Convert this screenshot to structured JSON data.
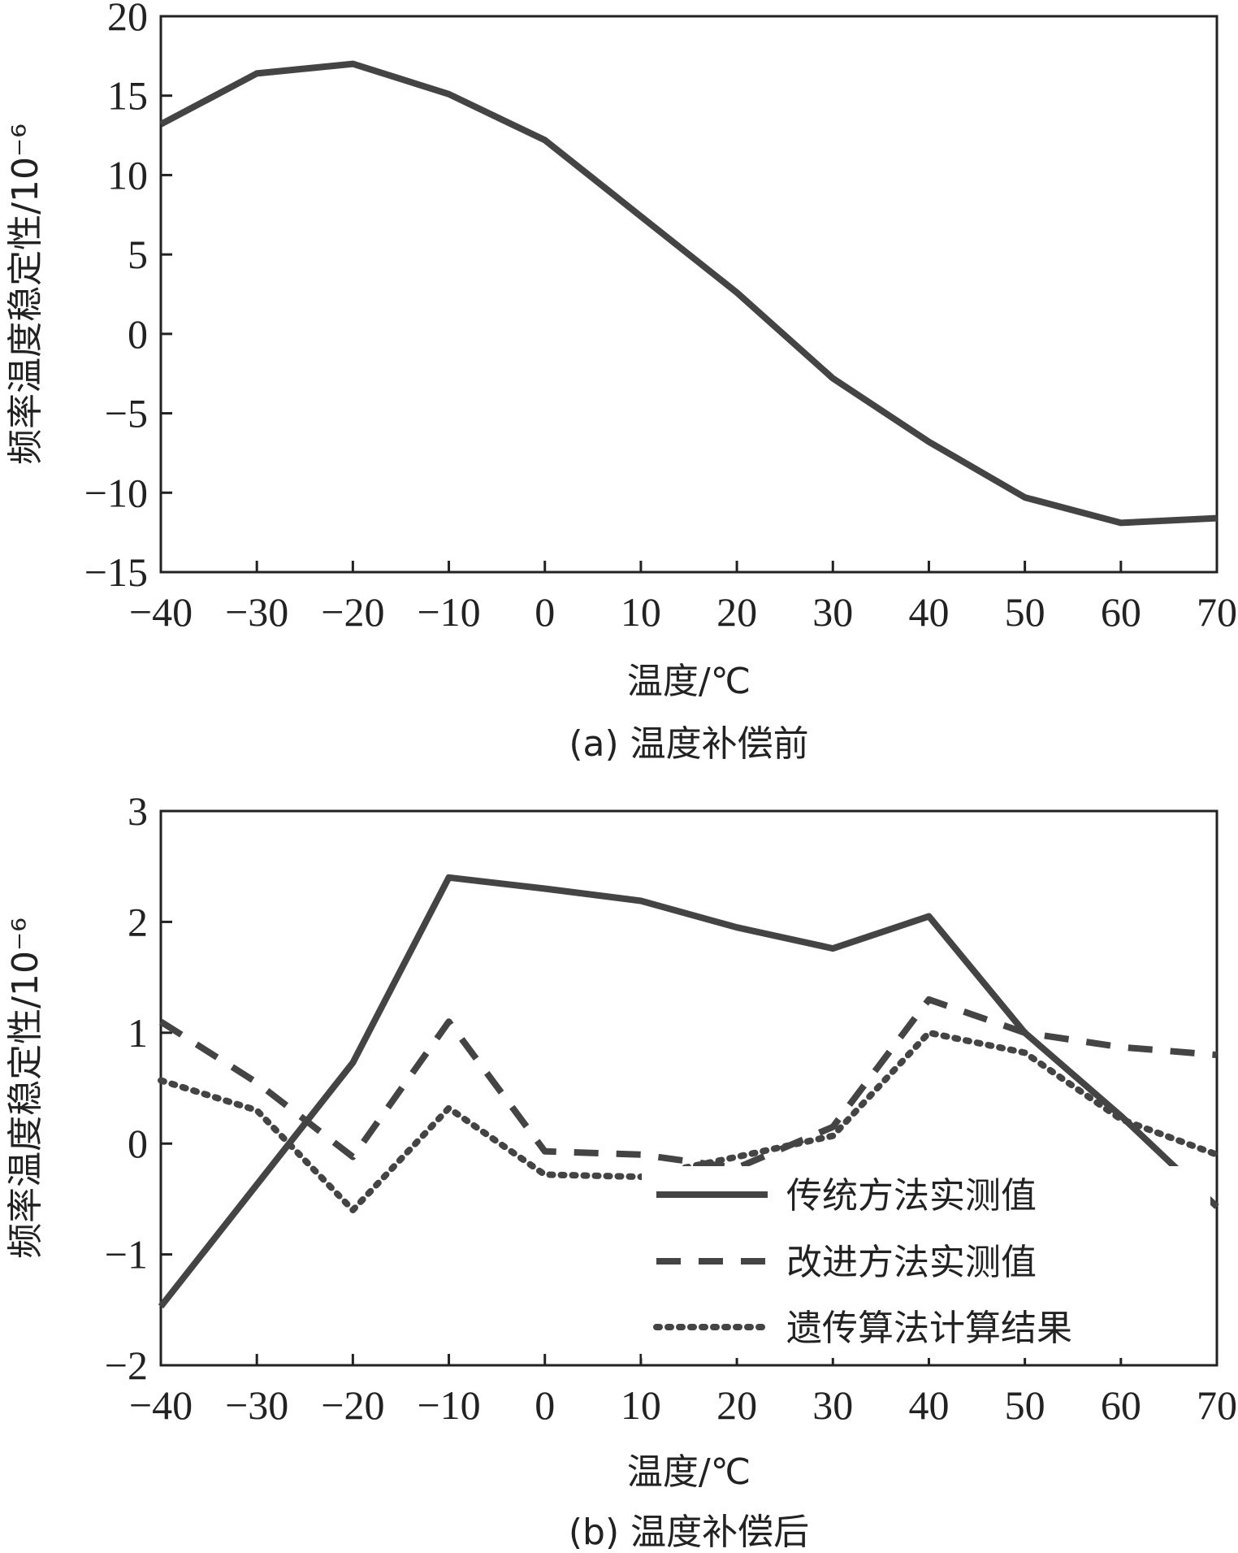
{
  "chart_data": [
    {
      "type": "line",
      "caption": "(a) 温度补偿前",
      "xlabel": "温度/℃",
      "ylabel": "频率温度稳定性/10⁻⁶",
      "xlim": [
        -40,
        70
      ],
      "ylim": [
        -15,
        20
      ],
      "xticks": [
        -40,
        -30,
        -20,
        -10,
        0,
        10,
        20,
        30,
        40,
        50,
        60,
        70
      ],
      "yticks": [
        -15,
        -10,
        -5,
        0,
        5,
        10,
        15,
        20
      ],
      "xtick_labels": [
        "−40",
        "−30",
        "−20",
        "−10",
        "0",
        "10",
        "20",
        "30",
        "40",
        "50",
        "60",
        "70"
      ],
      "ytick_labels": [
        "−15",
        "−10",
        "−5",
        "0",
        "5",
        "10",
        "15",
        "20"
      ],
      "grid": false,
      "series": [
        {
          "name": "",
          "style": "solid",
          "color": "#444444",
          "x": [
            -40,
            -30,
            -20,
            -10,
            0,
            10,
            20,
            30,
            40,
            50,
            60,
            70
          ],
          "values": [
            13.2,
            16.4,
            17.0,
            15.1,
            12.2,
            7.4,
            2.6,
            -2.8,
            -6.8,
            -10.3,
            -11.9,
            -11.6
          ]
        }
      ]
    },
    {
      "type": "line",
      "caption": "(b) 温度补偿后",
      "xlabel": "温度/℃",
      "ylabel": "频率温度稳定性/10⁻⁶",
      "xlim": [
        -40,
        70
      ],
      "ylim": [
        -2,
        3
      ],
      "xticks": [
        -40,
        -30,
        -20,
        -10,
        0,
        10,
        20,
        30,
        40,
        50,
        60,
        70
      ],
      "yticks": [
        -2,
        -1,
        0,
        1,
        2,
        3
      ],
      "xtick_labels": [
        "−40",
        "−30",
        "−20",
        "−10",
        "0",
        "10",
        "20",
        "30",
        "40",
        "50",
        "60",
        "70"
      ],
      "ytick_labels": [
        "−2",
        "−1",
        "0",
        "1",
        "2",
        "3"
      ],
      "grid": false,
      "legend_position": "bottom-right",
      "series": [
        {
          "name": "传统方法实测值",
          "style": "solid",
          "color": "#444444",
          "x": [
            -40,
            -20,
            -10,
            0,
            10,
            20,
            30,
            40,
            50,
            60,
            70
          ],
          "values": [
            -1.47,
            0.73,
            2.4,
            2.3,
            2.19,
            1.95,
            1.76,
            2.05,
            1.0,
            0.25,
            -0.57
          ]
        },
        {
          "name": "改进方法实测值",
          "style": "dashed",
          "color": "#444444",
          "x": [
            -40,
            -30,
            -20,
            -10,
            0,
            10,
            20,
            30,
            40,
            50,
            60,
            70
          ],
          "values": [
            1.1,
            0.55,
            -0.12,
            1.1,
            -0.07,
            -0.1,
            -0.22,
            0.15,
            1.3,
            1.0,
            0.87,
            0.8
          ]
        },
        {
          "name": "遗传算法计算结果",
          "style": "dotted",
          "color": "#444444",
          "x": [
            -40,
            -30,
            -20,
            -10,
            0,
            10,
            20,
            30,
            40,
            50,
            60,
            70
          ],
          "values": [
            0.57,
            0.3,
            -0.6,
            0.32,
            -0.28,
            -0.3,
            -0.12,
            0.07,
            1.0,
            0.82,
            0.22,
            -0.1
          ]
        }
      ]
    }
  ]
}
